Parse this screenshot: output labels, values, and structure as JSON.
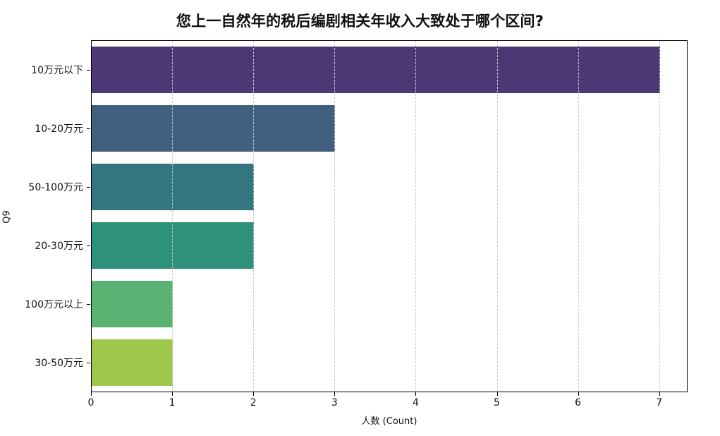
{
  "chart_data": {
    "type": "bar",
    "orientation": "horizontal",
    "title": "您上一自然年的税后编剧相关年收入大致处于哪个区间?",
    "xlabel": "人数 (Count)",
    "ylabel": "Q9",
    "categories": [
      "10万元以下",
      "10-20万元",
      "50-100万元",
      "20-30万元",
      "100万元以上",
      "30-50万元"
    ],
    "values": [
      7,
      3,
      2,
      2,
      1,
      1
    ],
    "colors": [
      "#4b3875",
      "#41607f",
      "#34767f",
      "#2e917c",
      "#5ab372",
      "#9ec84b"
    ],
    "xlim": [
      0,
      7.35
    ],
    "xticks": [
      "0",
      "1",
      "2",
      "3",
      "4",
      "5",
      "6",
      "7"
    ],
    "grid": {
      "x": true,
      "y": false,
      "style": "dashed"
    },
    "legend": null
  }
}
